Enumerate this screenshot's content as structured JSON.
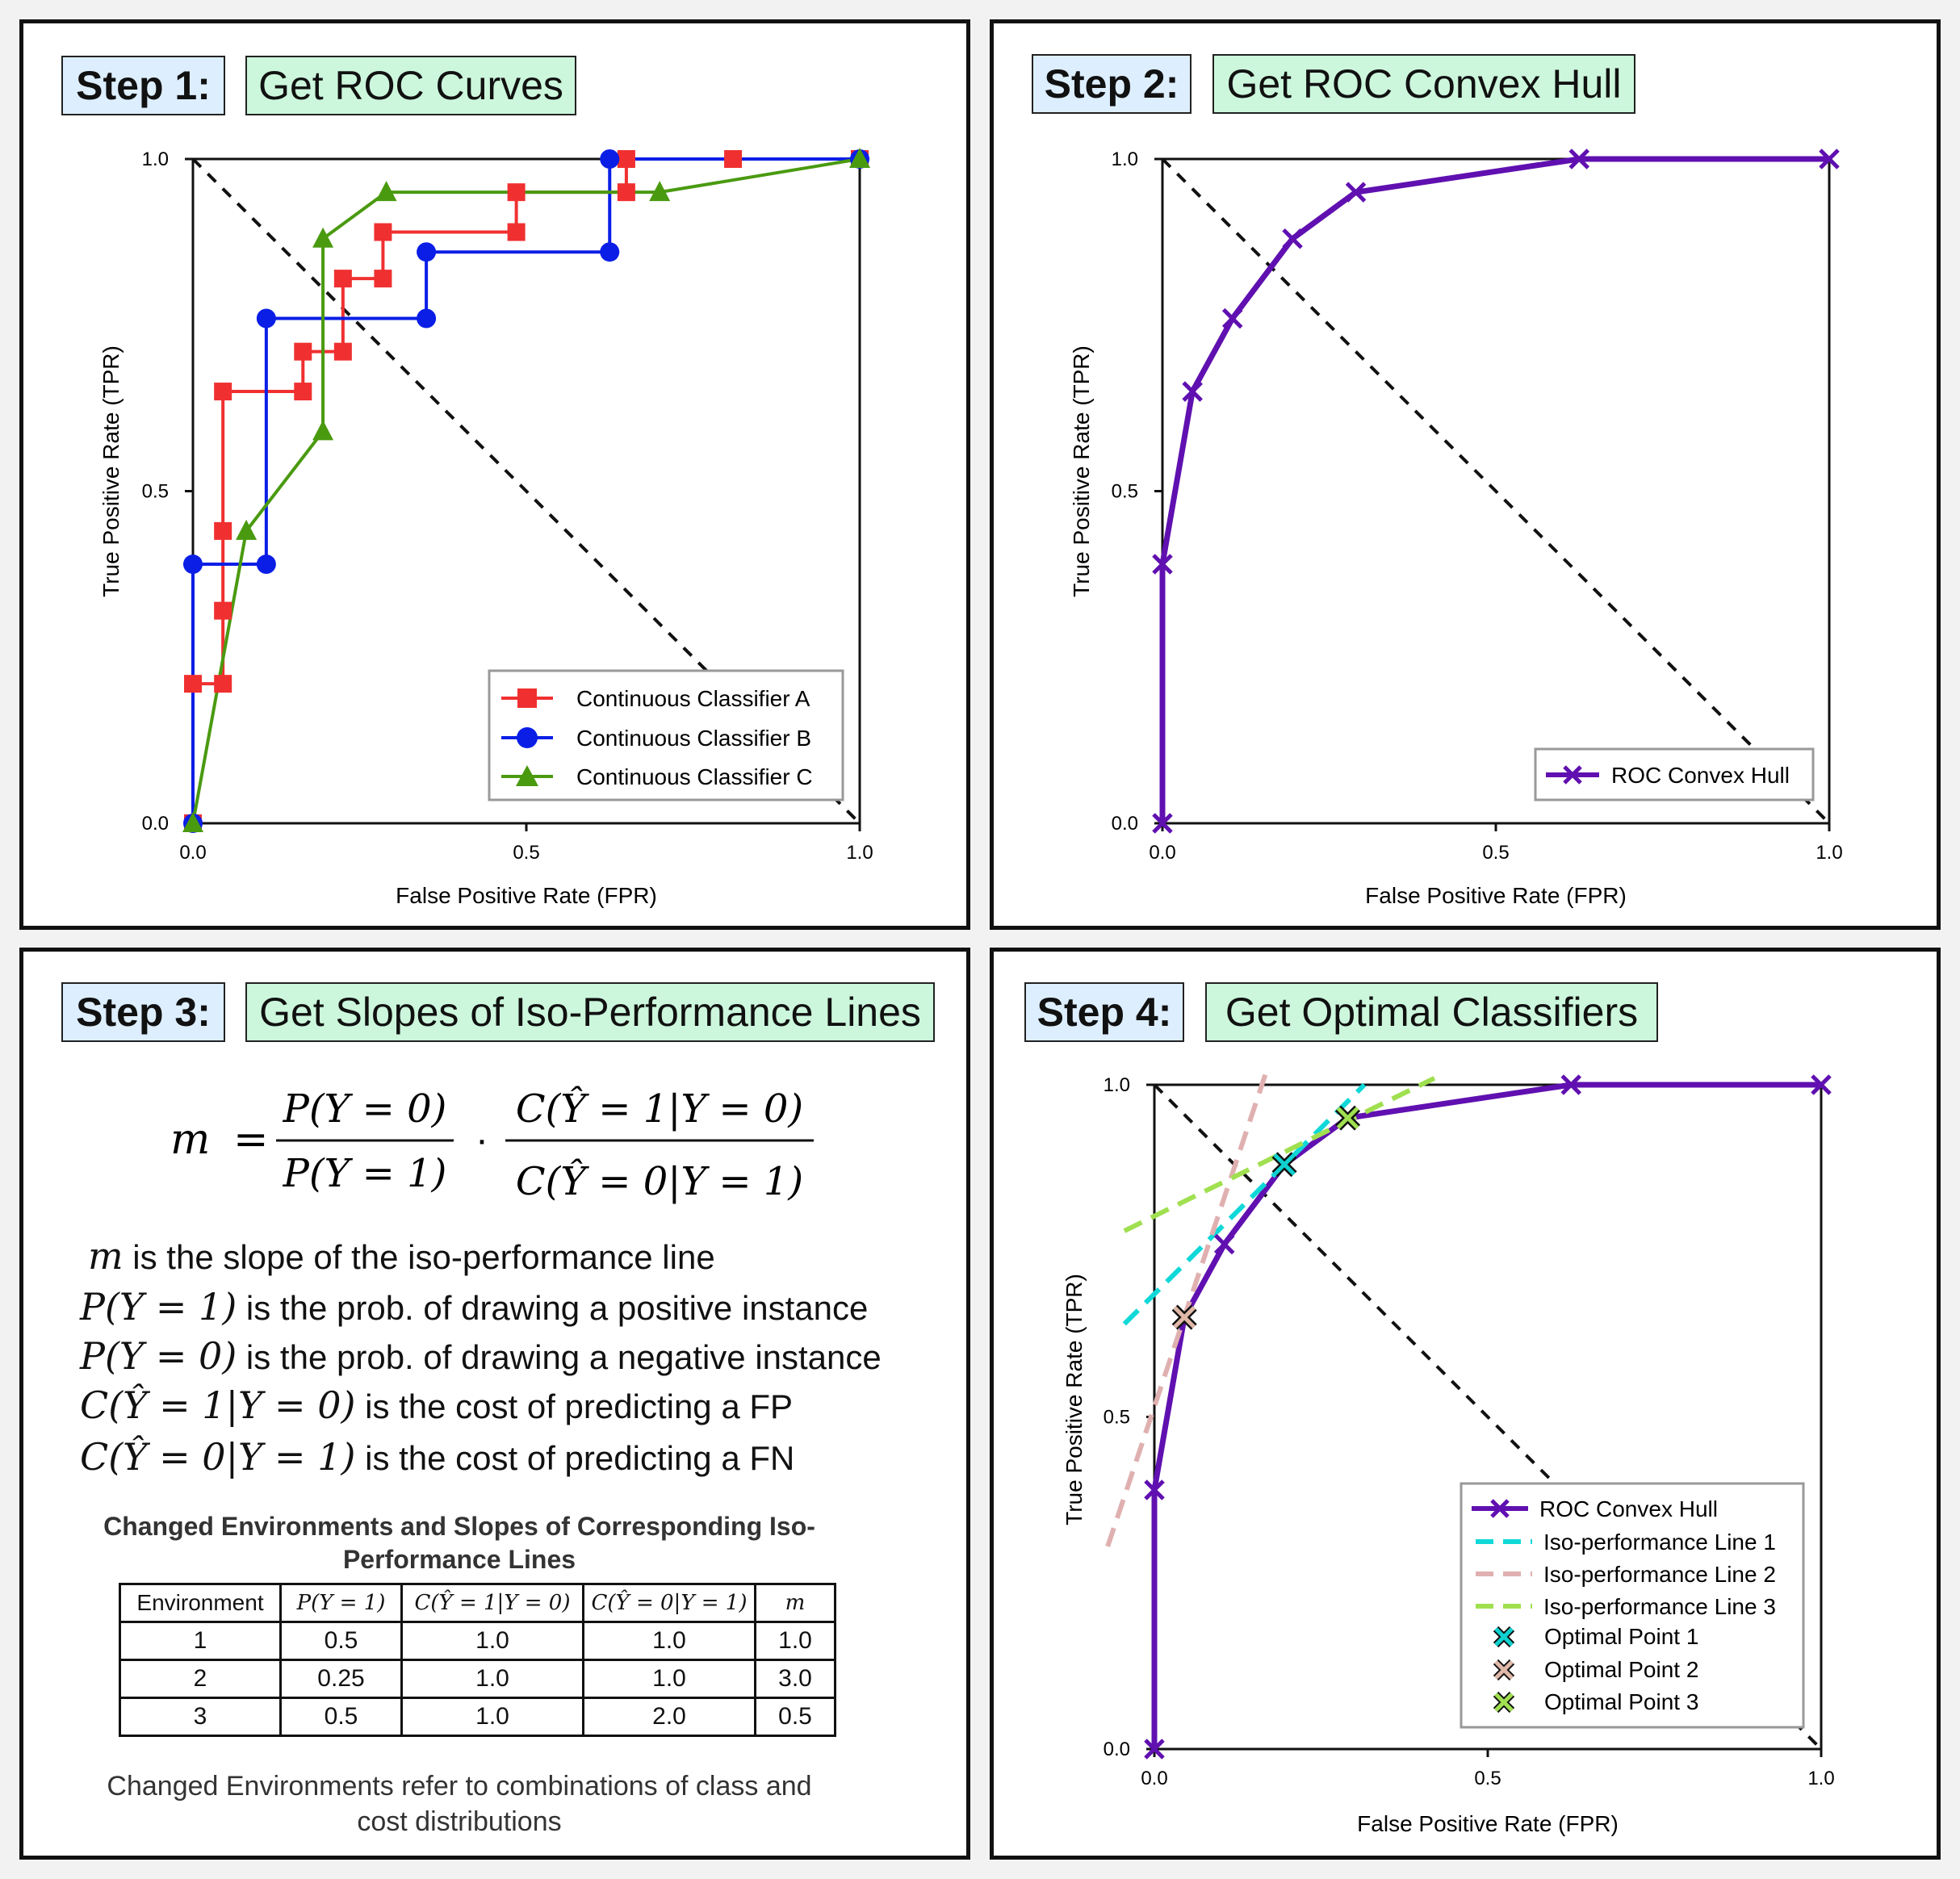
{
  "steps": [
    {
      "step_label": "Step 1:",
      "title": "Get ROC Curves"
    },
    {
      "step_label": "Step 2:",
      "title": "Get ROC Convex Hull"
    },
    {
      "step_label": "Step 3:",
      "title": "Get Slopes of Iso-Performance Lines"
    },
    {
      "step_label": "Step 4:",
      "title": "Get Optimal Classifiers"
    }
  ],
  "axes": {
    "xlabel": "False Positive Rate (FPR)",
    "ylabel": "True Positive Rate (TPR)",
    "xticks": [
      "0.0",
      "0.5",
      "1.0"
    ],
    "yticks": [
      "0.0",
      "0.5",
      "1.0"
    ]
  },
  "chart_data": [
    {
      "type": "line",
      "panel": "Step 1",
      "xlabel": "False Positive Rate (FPR)",
      "ylabel": "True Positive Rate (TPR)",
      "xlim": [
        0,
        1
      ],
      "ylim": [
        0,
        1
      ],
      "diagonal": "dashed black y = x",
      "legend_position": "bottom-right",
      "series": [
        {
          "name": "Continuous Classifier A",
          "color": "#f03030",
          "marker": "square",
          "points": [
            [
              0,
              0
            ],
            [
              0,
              0.21
            ],
            [
              0.045,
              0.21
            ],
            [
              0.045,
              0.32
            ],
            [
              0.045,
              0.44
            ],
            [
              0.045,
              0.65
            ],
            [
              0.165,
              0.65
            ],
            [
              0.165,
              0.71
            ],
            [
              0.225,
              0.71
            ],
            [
              0.225,
              0.82
            ],
            [
              0.285,
              0.82
            ],
            [
              0.285,
              0.89
            ],
            [
              0.485,
              0.89
            ],
            [
              0.485,
              0.95
            ],
            [
              0.65,
              0.95
            ],
            [
              0.65,
              1.0
            ],
            [
              0.81,
              1.0
            ],
            [
              1.0,
              1.0
            ]
          ]
        },
        {
          "name": "Continuous Classifier B",
          "color": "#0a1ee6",
          "marker": "circle",
          "points": [
            [
              0,
              0
            ],
            [
              0,
              0.39
            ],
            [
              0.11,
              0.39
            ],
            [
              0.11,
              0.76
            ],
            [
              0.35,
              0.76
            ],
            [
              0.35,
              0.86
            ],
            [
              0.625,
              0.86
            ],
            [
              0.625,
              1.0
            ],
            [
              1.0,
              1.0
            ]
          ]
        },
        {
          "name": "Continuous Classifier C",
          "color": "#4a9a10",
          "marker": "triangle",
          "points": [
            [
              0,
              0
            ],
            [
              0.08,
              0.44
            ],
            [
              0.195,
              0.59
            ],
            [
              0.195,
              0.88
            ],
            [
              0.29,
              0.95
            ],
            [
              0.7,
              0.95
            ],
            [
              1.0,
              1.0
            ]
          ]
        }
      ]
    },
    {
      "type": "line",
      "panel": "Step 2",
      "xlabel": "False Positive Rate (FPR)",
      "ylabel": "True Positive Rate (TPR)",
      "xlim": [
        0,
        1
      ],
      "ylim": [
        0,
        1
      ],
      "diagonal": "dashed black y = x",
      "legend_position": "bottom-right",
      "series": [
        {
          "name": "ROC Convex Hull",
          "color": "#6010b0",
          "marker": "x",
          "points": [
            [
              0,
              0
            ],
            [
              0,
              0.39
            ],
            [
              0.045,
              0.65
            ],
            [
              0.105,
              0.76
            ],
            [
              0.195,
              0.88
            ],
            [
              0.29,
              0.95
            ],
            [
              0.625,
              1.0
            ],
            [
              1.0,
              1.0
            ]
          ]
        }
      ]
    },
    {
      "type": "line",
      "panel": "Step 4",
      "xlabel": "False Positive Rate (FPR)",
      "ylabel": "True Positive Rate (TPR)",
      "xlim": [
        0,
        1
      ],
      "ylim": [
        0,
        1
      ],
      "diagonal": "dashed black y = x",
      "legend_position": "bottom-right",
      "series": [
        {
          "name": "ROC Convex Hull",
          "color": "#6010b0",
          "marker": "x",
          "points": [
            [
              0,
              0
            ],
            [
              0,
              0.39
            ],
            [
              0.045,
              0.65
            ],
            [
              0.105,
              0.76
            ],
            [
              0.195,
              0.88
            ],
            [
              0.29,
              0.95
            ],
            [
              0.625,
              1.0
            ],
            [
              1.0,
              1.0
            ]
          ]
        },
        {
          "name": "Iso-performance Line 1",
          "color": "#10d8d8",
          "dash": true,
          "slope": 1.0,
          "points": [
            [
              -0.045,
              0.64
            ],
            [
              0.315,
              1.0
            ]
          ]
        },
        {
          "name": "Iso-performance Line 2",
          "color": "#e0b0b0",
          "dash": true,
          "slope": 3.0,
          "points": [
            [
              -0.07,
              0.305
            ],
            [
              0.168,
              1.02
            ]
          ]
        },
        {
          "name": "Iso-performance Line 3",
          "color": "#a0e050",
          "dash": true,
          "slope": 0.5,
          "points": [
            [
              -0.045,
              0.78
            ],
            [
              0.42,
              1.01
            ]
          ]
        },
        {
          "name": "Optimal Point 1",
          "color": "#10d0d0",
          "marker": "x-outlined",
          "points": [
            [
              0.195,
              0.88
            ]
          ]
        },
        {
          "name": "Optimal Point 2",
          "color": "#e0b8a8",
          "marker": "x-outlined",
          "points": [
            [
              0.045,
              0.65
            ]
          ]
        },
        {
          "name": "Optimal Point 3",
          "color": "#a0e050",
          "marker": "x-outlined",
          "points": [
            [
              0.29,
              0.95
            ]
          ]
        }
      ]
    }
  ],
  "step3": {
    "formula_lhs": "m",
    "frac1_num": "P(Y = 0)",
    "frac1_den": "P(Y = 1)",
    "frac2_num": "C(Ŷ = 1|Y = 0)",
    "frac2_den": "C(Ŷ = 0|Y = 1)",
    "definitions": [
      {
        "math": "m",
        "text": " is the slope of the iso-performance line"
      },
      {
        "math": "P(Y = 1)",
        "text": " is the prob. of drawing a positive instance"
      },
      {
        "math": "P(Y = 0)",
        "text": " is the prob. of drawing a negative instance"
      },
      {
        "math": "C(Ŷ = 1|Y = 0)",
        "text": " is the cost of predicting a FP"
      },
      {
        "math": "C(Ŷ = 0|Y = 1)",
        "text": " is the cost of predicting a FN"
      }
    ],
    "table_title": "Changed Environments and Slopes of Corresponding Iso-Performance Lines",
    "table_headers": [
      "Environment",
      "P(Y = 1)",
      "C(Ŷ = 1|Y = 0)",
      "C(Ŷ = 0|Y = 1)",
      "m"
    ],
    "table_rows": [
      [
        "1",
        "0.5",
        "1.0",
        "1.0",
        "1.0"
      ],
      [
        "2",
        "0.25",
        "1.0",
        "1.0",
        "3.0"
      ],
      [
        "3",
        "0.5",
        "1.0",
        "2.0",
        "0.5"
      ]
    ],
    "note": "Changed Environments refer to combinations of class and cost distributions"
  }
}
